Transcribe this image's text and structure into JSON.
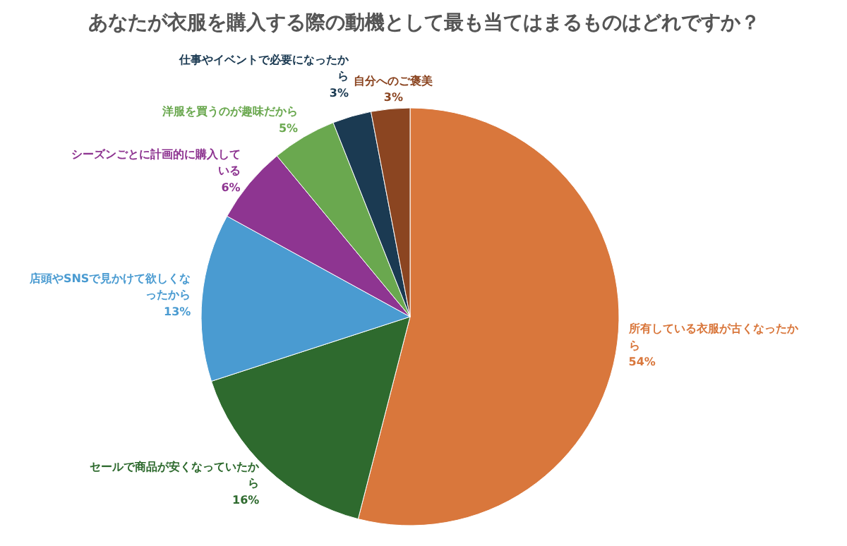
{
  "chart_data": {
    "type": "pie",
    "title": "あなたが衣服を購入する際の動機として最も当てはまるものはどれですか？",
    "categories": [
      "所有している衣服が古くなったから",
      "セールで商品が安くなっていたから",
      "店頭やSNSで見かけて欲しくなったから",
      "シーズンごとに計画的に購入している",
      "洋服を買うのが趣味だから",
      "仕事やイベントで必要になったから",
      "自分へのご褒美"
    ],
    "values": [
      54,
      16,
      13,
      6,
      5,
      3,
      3
    ],
    "value_labels": [
      "54%",
      "16%",
      "13%",
      "6%",
      "5%",
      "3%",
      "3%"
    ],
    "colors": [
      "#d9773c",
      "#2e6a2e",
      "#4a9bd1",
      "#8e3591",
      "#6aa84f",
      "#1b3a52",
      "#8b4521"
    ]
  }
}
